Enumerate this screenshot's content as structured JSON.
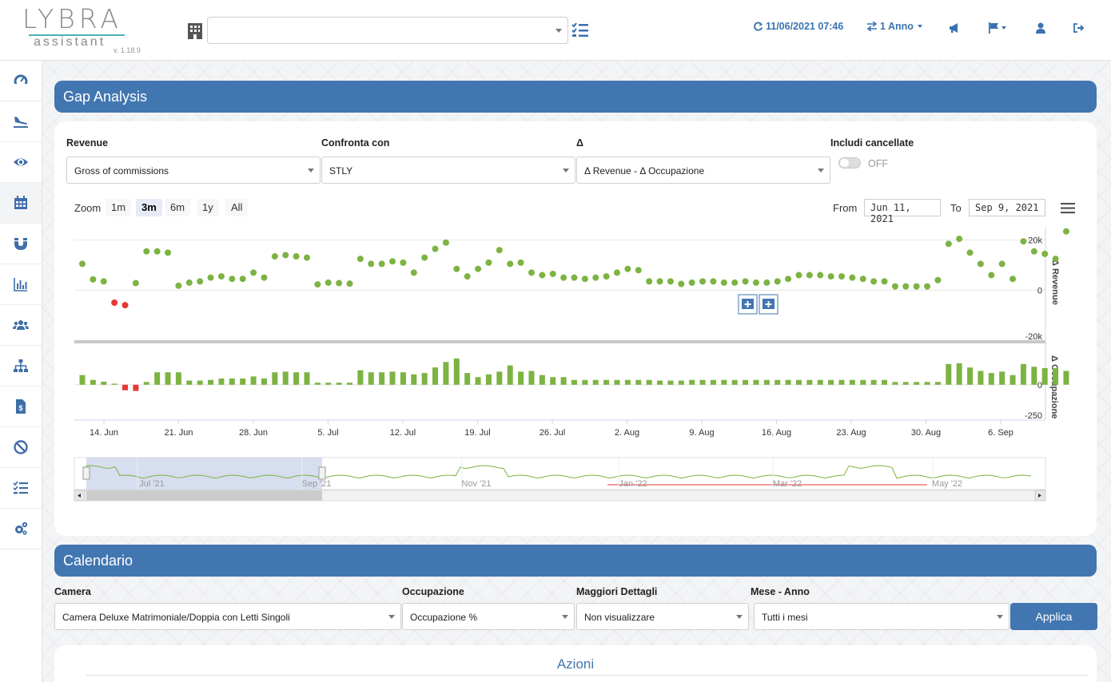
{
  "header": {
    "logo_word": "LYBRA",
    "logo_sub": "assistant",
    "version": "v. 1.18.9",
    "hotel_select_value": "",
    "refresh_label": "11/06/2021 07:46",
    "period_label": "1 Anno",
    "icons": [
      "building-icon",
      "list-check-icon",
      "refresh-icon",
      "exchange-icon",
      "megaphone-icon",
      "flag-icon",
      "user-icon",
      "sign-out-icon"
    ]
  },
  "sidebar": {
    "items": [
      {
        "icon": "dashboard-gauge-icon"
      },
      {
        "icon": "plane-arrival-icon"
      },
      {
        "icon": "eye-icon"
      },
      {
        "icon": "calendar-icon",
        "active": true
      },
      {
        "icon": "magnet-icon"
      },
      {
        "icon": "bar-chart-icon"
      },
      {
        "icon": "users-icon"
      },
      {
        "icon": "sitemap-icon"
      },
      {
        "icon": "invoice-dollar-icon"
      },
      {
        "icon": "ban-icon"
      },
      {
        "icon": "tasks-icon"
      },
      {
        "icon": "cogs-icon"
      }
    ]
  },
  "gap": {
    "title": "Gap Analysis",
    "revenue_label": "Revenue",
    "revenue_value": "Gross of commissions",
    "compare_label": "Confronta con",
    "compare_value": "STLY",
    "delta_label": "Δ",
    "delta_value": "Δ Revenue - Δ Occupazione",
    "cancelled_label": "Includi cancellate",
    "cancelled_state": "OFF",
    "zoom_label": "Zoom",
    "zoom_buttons": [
      "1m",
      "3m",
      "6m",
      "1y",
      "All"
    ],
    "zoom_selected": "3m",
    "from_label": "From",
    "from_value": "Jun 11, 2021",
    "to_label": "To",
    "to_value": "Sep 9, 2021"
  },
  "chart_data": {
    "type": "scatter",
    "x_tick_labels": [
      "14. Jun",
      "21. Jun",
      "28. Jun",
      "5. Jul",
      "12. Jul",
      "19. Jul",
      "26. Jul",
      "2. Aug",
      "9. Aug",
      "16. Aug",
      "23. Aug",
      "30. Aug",
      "6. Sep"
    ],
    "revenue_axis": {
      "title": "Δ Revenue",
      "ticks": [
        "20k",
        "0",
        "-20k"
      ],
      "ylim": [
        -20000,
        25000
      ]
    },
    "occupancy_axis": {
      "title": "Δ Occupazione",
      "ticks": [
        "0",
        "-250"
      ],
      "ylim": [
        -250,
        230
      ]
    },
    "positive_color": "#7cb342",
    "negative_color": "#e53935",
    "revenue_values": [
      10500,
      4300,
      3500,
      -5000,
      -6000,
      2800,
      15500,
      15500,
      15000,
      1800,
      3000,
      3500,
      5000,
      5500,
      4500,
      4500,
      7000,
      5000,
      13500,
      14000,
      13500,
      13000,
      2300,
      3000,
      2800,
      2600,
      12500,
      10500,
      10500,
      11500,
      11000,
      7000,
      13000,
      16500,
      19000,
      8500,
      5500,
      8500,
      11000,
      16000,
      10500,
      11000,
      7000,
      6000,
      6500,
      5000,
      5000,
      4500,
      5000,
      5500,
      7000,
      8500,
      8000,
      3500,
      3500,
      3500,
      2500,
      3000,
      3500,
      3500,
      3000,
      3000,
      3500,
      3000,
      3000,
      3500,
      4500,
      6000,
      6000,
      6000,
      5500,
      5500,
      5000,
      4500,
      3500,
      3500,
      1500,
      1500,
      1500,
      1500,
      4000,
      18500,
      20500,
      15000,
      10500,
      6000,
      10500,
      4500,
      19500,
      15500,
      14500,
      12500,
      23500
    ],
    "occupancy_values": [
      70,
      35,
      22,
      8,
      -40,
      -45,
      20,
      90,
      90,
      90,
      30,
      30,
      35,
      45,
      45,
      45,
      60,
      45,
      90,
      95,
      90,
      90,
      15,
      15,
      15,
      15,
      105,
      90,
      90,
      95,
      90,
      75,
      85,
      125,
      165,
      190,
      85,
      55,
      75,
      95,
      140,
      95,
      100,
      70,
      55,
      55,
      35,
      35,
      35,
      35,
      35,
      35,
      35,
      35,
      30,
      30,
      30,
      35,
      35,
      35,
      35,
      35,
      35,
      35,
      35,
      35,
      35,
      35,
      35,
      35,
      35,
      35,
      35,
      35,
      35,
      35,
      20,
      20,
      20,
      20,
      20,
      150,
      155,
      125,
      100,
      85,
      95,
      70,
      150,
      130,
      120,
      120,
      100
    ],
    "navigator_labels": [
      "Jul '21",
      "Sep '21",
      "Nov '21",
      "Jan '22",
      "Mar '22",
      "May '22"
    ]
  },
  "calendar": {
    "title": "Calendario",
    "camera_label": "Camera",
    "camera_value": "Camera Deluxe Matrimoniale/Doppia con Letti Singoli",
    "occupancy_label": "Occupazione",
    "occupancy_value": "Occupazione %",
    "details_label": "Maggiori Dettagli",
    "details_value": "Non visualizzare",
    "month_label": "Mese - Anno",
    "month_value": "Tutti i mesi",
    "apply_label": "Applica"
  },
  "actions": {
    "title": "Azioni"
  }
}
